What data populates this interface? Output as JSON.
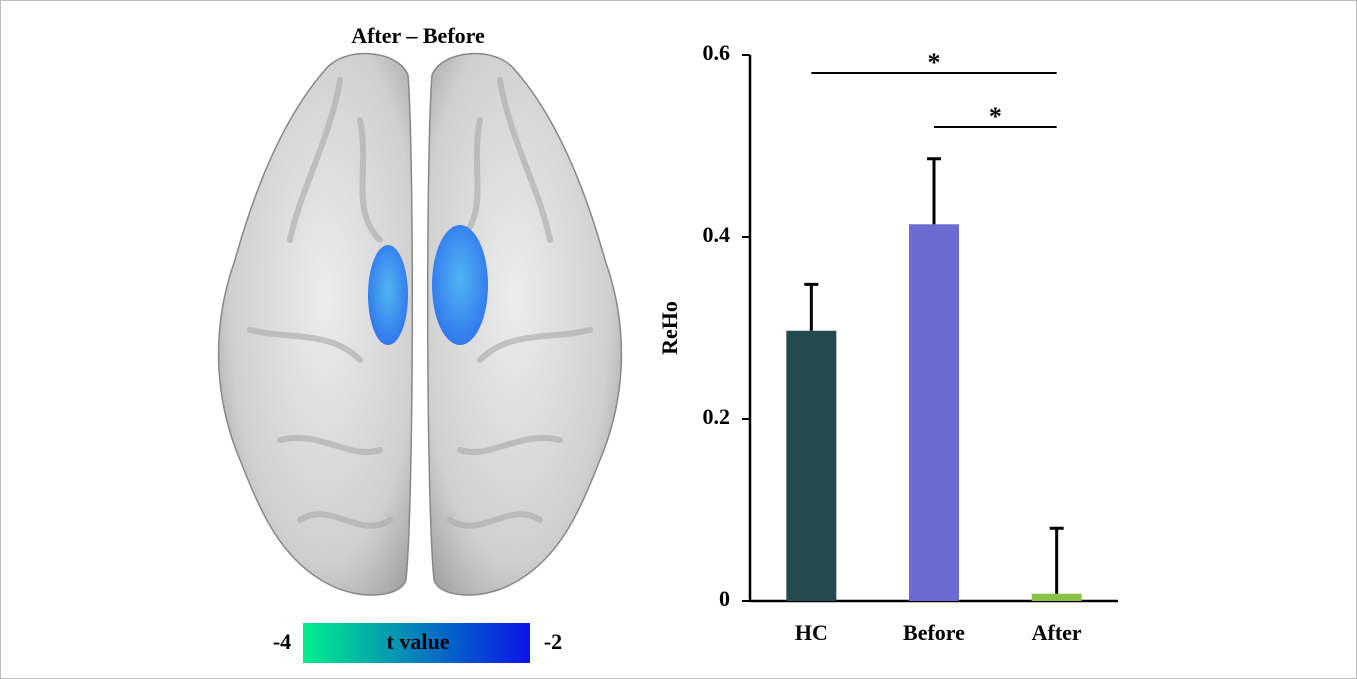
{
  "brain_panel": {
    "title": "After – Before",
    "colorbar": {
      "ticks": [
        -4,
        -2
      ],
      "label": "t value",
      "colors": [
        "#00ef8c",
        "#0a14ea"
      ]
    }
  },
  "chart_data": {
    "type": "bar",
    "y_label": "ReHo",
    "categories": [
      "HC",
      "Before",
      "After"
    ],
    "values": [
      0.297,
      0.414,
      0.008
    ],
    "errors": [
      0.051,
      0.072,
      0.072
    ],
    "colors": [
      "#234b4e",
      "#6b6bd1",
      "#8bc34a"
    ],
    "ylim": [
      0,
      0.6
    ],
    "yticks": [
      0,
      0.2,
      0.4,
      0.6
    ],
    "significance": [
      {
        "from": 0,
        "to": 2,
        "label": "*"
      },
      {
        "from": 1,
        "to": 2,
        "label": "*"
      }
    ]
  }
}
